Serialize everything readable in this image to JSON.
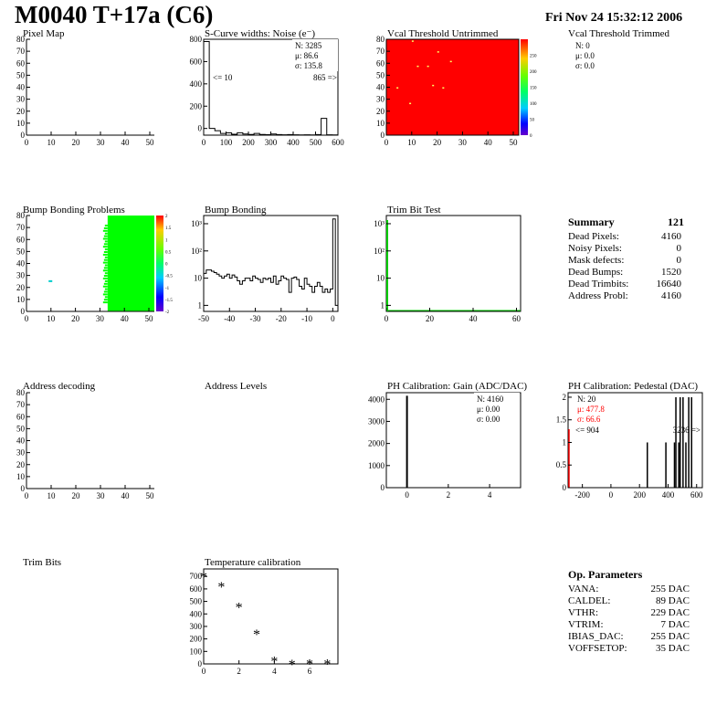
{
  "header": {
    "title": "M0040 T+17a (C6)",
    "date": "Fri Nov 24 15:32:12 2006"
  },
  "panels": {
    "pixel_map": {
      "title": "Pixel Map",
      "x_ticks": [
        "0",
        "10",
        "20",
        "30",
        "40",
        "50"
      ],
      "y_ticks": [
        "0",
        "10",
        "20",
        "30",
        "40",
        "50",
        "60",
        "70",
        "80"
      ]
    },
    "scurve": {
      "title": "S-Curve widths: Noise (e⁻)",
      "stats": {
        "n": "N: 3285",
        "mu": "μ: 86.6",
        "sigma": "σ: 135.8"
      },
      "underflow": "<= 10",
      "overflow": "865 =>",
      "x_ticks": [
        "0",
        "100",
        "200",
        "300",
        "400",
        "500",
        "600"
      ],
      "y_ticks": [
        "0",
        "200",
        "400",
        "600",
        "800"
      ]
    },
    "vcal_untrimmed": {
      "title": "Vcal Threshold Untrimmed",
      "x_ticks": [
        "0",
        "10",
        "20",
        "30",
        "40",
        "50"
      ],
      "y_ticks": [
        "0",
        "10",
        "20",
        "30",
        "40",
        "50",
        "60",
        "70",
        "80"
      ],
      "z_ticks": [
        "0",
        "50",
        "100",
        "150",
        "200",
        "250"
      ]
    },
    "vcal_trimmed": {
      "title": "Vcal Threshold Trimmed",
      "stats": {
        "n": "N:    0",
        "mu": "μ:  0.0",
        "sigma": "σ:  0.0"
      }
    },
    "bump_problems": {
      "title": "Bump Bonding Problems",
      "x_ticks": [
        "0",
        "10",
        "20",
        "30",
        "40",
        "50"
      ],
      "y_ticks": [
        "0",
        "10",
        "20",
        "30",
        "40",
        "50",
        "60",
        "70",
        "80"
      ],
      "z_ticks": [
        "-2",
        "-1.5",
        "-1",
        "-0.5",
        "0",
        "0.5",
        "1",
        "1.5",
        "2"
      ]
    },
    "bump_bonding": {
      "title": "Bump Bonding",
      "x_ticks": [
        "-50",
        "-40",
        "-30",
        "-20",
        "-10",
        "0"
      ],
      "y_ticks": [
        "1",
        "10",
        "10²",
        "10³"
      ]
    },
    "trim_bit_test": {
      "title": "Trim Bit Test",
      "x_ticks": [
        "0",
        "20",
        "40",
        "60"
      ],
      "y_ticks": [
        "1",
        "10",
        "10²",
        "10³"
      ]
    },
    "summary": {
      "heading": "Summary",
      "total": "121",
      "rows": [
        {
          "label": "Dead Pixels:",
          "value": "4160"
        },
        {
          "label": "Noisy Pixels:",
          "value": "0"
        },
        {
          "label": "Mask defects:",
          "value": "0"
        },
        {
          "label": "Dead Bumps:",
          "value": "1520"
        },
        {
          "label": "Dead Trimbits:",
          "value": "16640"
        },
        {
          "label": "Address Probl:",
          "value": "4160"
        }
      ]
    },
    "address_decoding": {
      "title": "Address decoding",
      "x_ticks": [
        "0",
        "10",
        "20",
        "30",
        "40",
        "50"
      ],
      "y_ticks": [
        "0",
        "10",
        "20",
        "30",
        "40",
        "50",
        "60",
        "70",
        "80"
      ]
    },
    "address_levels": {
      "title": "Address Levels"
    },
    "ph_gain": {
      "title": "PH Calibration: Gain (ADC/DAC)",
      "stats": {
        "n": "N: 4160",
        "mu": "μ: 0.00",
        "sigma": "σ: 0.00"
      },
      "x_ticks": [
        "0",
        "2",
        "4"
      ],
      "y_ticks": [
        "0",
        "1000",
        "2000",
        "3000",
        "4000"
      ]
    },
    "ph_pedestal": {
      "title": "PH Calibration: Pedestal (DAC)",
      "stats": {
        "n": "N:   20",
        "mu": "μ: 477.8",
        "sigma": "σ: 66.6"
      },
      "underflow": "<= 904",
      "overflow": "3236 =>",
      "x_ticks": [
        "-200",
        "0",
        "200",
        "400",
        "600"
      ],
      "y_ticks": [
        "0",
        "0.5",
        "1",
        "1.5",
        "2"
      ]
    },
    "trim_bits": {
      "title": "Trim Bits"
    },
    "temperature": {
      "title": "Temperature calibration",
      "x_ticks": [
        "0",
        "2",
        "4",
        "6"
      ],
      "y_ticks": [
        "0",
        "100",
        "200",
        "300",
        "400",
        "500",
        "600",
        "700"
      ]
    },
    "op_params": {
      "heading": "Op. Parameters",
      "rows": [
        {
          "label": "VANA:",
          "value": "255 DAC"
        },
        {
          "label": "CALDEL:",
          "value": "89 DAC"
        },
        {
          "label": "VTHR:",
          "value": "229 DAC"
        },
        {
          "label": "VTRIM:",
          "value": "7 DAC"
        },
        {
          "label": "IBIAS_DAC:",
          "value": "255 DAC"
        },
        {
          "label": "VOFFSETOP:",
          "value": "35 DAC"
        }
      ]
    }
  },
  "colors": {
    "map_red": "#ff0000",
    "map_green": "#00ff00",
    "line": "#000000",
    "accent_red": "#ff0000",
    "trim_green": "#00cc00"
  },
  "chart_data": [
    {
      "type": "bar",
      "name": "scurve",
      "xlim": [
        0,
        600
      ],
      "ylim": [
        0,
        860
      ],
      "x": [
        12.5,
        37.5,
        62.5,
        87.5,
        112.5,
        137.5,
        162.5,
        187.5,
        212.5,
        237.5,
        262.5,
        287.5,
        312.5,
        337.5,
        362.5,
        387.5,
        412.5,
        437.5,
        462.5,
        487.5,
        512.5,
        537.5,
        562.5,
        587.5
      ],
      "values": [
        840,
        60,
        40,
        15,
        20,
        8,
        22,
        10,
        6,
        15,
        6,
        4,
        10,
        5,
        3,
        5,
        3,
        2,
        3,
        2,
        5,
        150,
        3,
        2
      ]
    },
    {
      "type": "heatmap",
      "name": "vcal_untrimmed",
      "xlim": [
        0,
        52
      ],
      "ylim": [
        0,
        80
      ],
      "fill": "uniform high",
      "points": [
        [
          10,
          79
        ],
        [
          20,
          70
        ],
        [
          12,
          58
        ],
        [
          16,
          58
        ],
        [
          25,
          62
        ],
        [
          4,
          40
        ],
        [
          22,
          40
        ],
        [
          18,
          42
        ],
        [
          9,
          27
        ]
      ]
    },
    {
      "type": "heatmap",
      "name": "bump_problems",
      "xlim": [
        0,
        52
      ],
      "ylim": [
        0,
        80
      ],
      "green_from_x": 33,
      "points": [
        [
          9,
          26
        ]
      ]
    },
    {
      "type": "line",
      "name": "bump_bonding",
      "log_y": true,
      "xlim": [
        -50,
        2
      ],
      "ylim": [
        0.6,
        2000
      ],
      "x": [
        -50,
        -49,
        -48,
        -47,
        -46,
        -45,
        -44,
        -43,
        -42,
        -41,
        -40,
        -39,
        -38,
        -37,
        -36,
        -35,
        -34,
        -33,
        -32,
        -31,
        -30,
        -29,
        -28,
        -27,
        -26,
        -25,
        -24,
        -23,
        -22,
        -21,
        -20,
        -19,
        -18,
        -17,
        -16,
        -15,
        -14,
        -13,
        -12,
        -11,
        -10,
        -9,
        -8,
        -7,
        -6,
        -5,
        -4,
        -3,
        -2,
        -1,
        0,
        1
      ],
      "values": [
        15,
        20,
        20,
        18,
        16,
        14,
        12,
        10,
        12,
        14,
        10,
        13,
        11,
        8,
        6,
        8,
        10,
        10,
        8,
        12,
        10,
        9,
        7,
        10,
        9,
        10,
        7,
        12,
        6,
        8,
        12,
        10,
        9,
        3,
        10,
        11,
        9,
        5,
        4,
        10,
        6,
        5,
        3,
        5,
        7,
        5,
        3,
        4,
        3,
        4,
        1500,
        1
      ]
    },
    {
      "type": "bar",
      "name": "ph_gain",
      "xlim": [
        -1,
        5.5
      ],
      "ylim": [
        0,
        4300
      ],
      "x": [
        0
      ],
      "values": [
        4160
      ]
    },
    {
      "type": "bar",
      "name": "ph_pedestal",
      "xlim": [
        -300,
        640
      ],
      "ylim": [
        0,
        2.1
      ],
      "x": [
        250,
        380,
        440,
        450,
        470,
        480,
        500,
        520,
        540,
        560
      ],
      "values": [
        1,
        1,
        1,
        2,
        1,
        2,
        2,
        1,
        2,
        2
      ]
    },
    {
      "type": "scatter",
      "name": "temperature",
      "xlim": [
        0,
        7.6
      ],
      "ylim": [
        0,
        760
      ],
      "x": [
        0,
        1,
        2,
        3,
        4,
        5,
        6,
        7
      ],
      "values": [
        700,
        620,
        455,
        240,
        25,
        0,
        5,
        5
      ]
    }
  ]
}
